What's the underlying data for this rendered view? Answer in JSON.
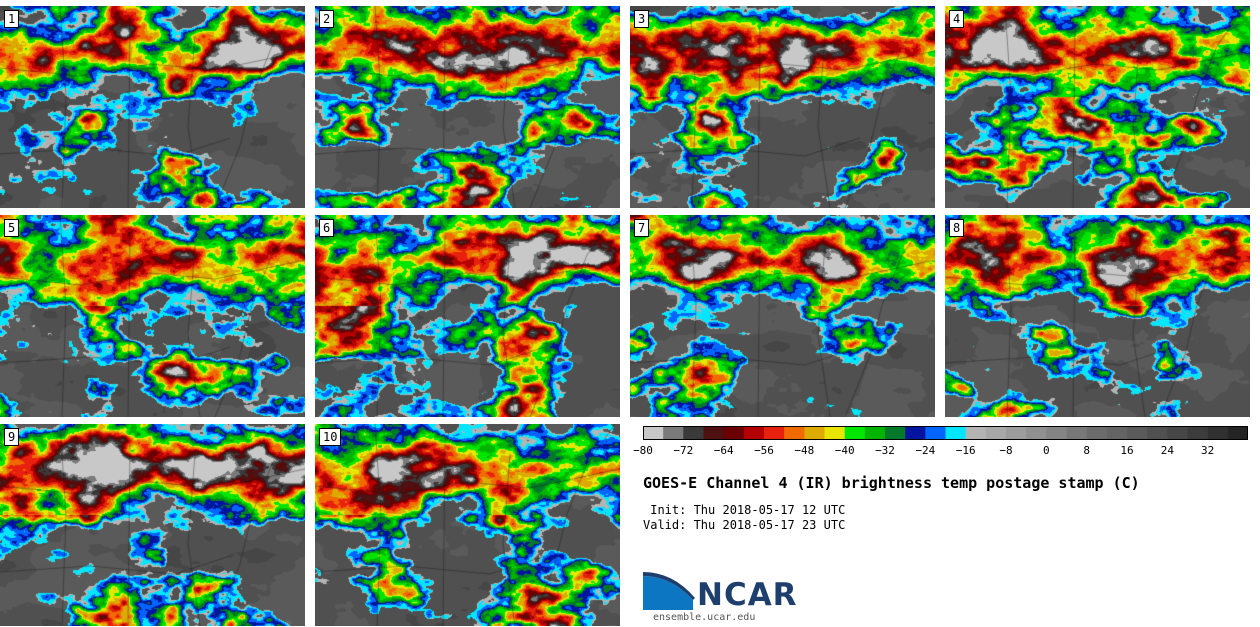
{
  "chart_data": {
    "type": "heatmap",
    "title": "GOES-E Channel 4 (IR) brightness temp postage stamp (C)",
    "init": " Init: Thu 2018-05-17 12 UTC",
    "valid": "Valid: Thu 2018-05-17 23 UTC",
    "panels": [
      "1",
      "2",
      "3",
      "4",
      "5",
      "6",
      "7",
      "8",
      "9",
      "10"
    ],
    "colorbar": {
      "min": -80,
      "max": 40,
      "step": 4,
      "tick_labels": [
        "−80",
        "−72",
        "−64",
        "−56",
        "−48",
        "−40",
        "−32",
        "−24",
        "−16",
        "−8",
        "0",
        "8",
        "16",
        "24",
        "32"
      ],
      "tick_values": [
        -80,
        -72,
        -64,
        -56,
        -48,
        -40,
        -32,
        -24,
        -16,
        -8,
        0,
        8,
        16,
        24,
        32
      ],
      "colors": [
        "#c8c8c8",
        "#7a7a7a",
        "#3a3a3a",
        "#4e1010",
        "#6b0000",
        "#b50000",
        "#e8200e",
        "#f06a00",
        "#dcaa00",
        "#e8e600",
        "#00e600",
        "#00b400",
        "#007a28",
        "#0014a0",
        "#0064ff",
        "#00e6ff",
        "#b4b4b4",
        "#a8a8a8",
        "#9c9c9c",
        "#909090",
        "#848484",
        "#787878",
        "#6c6c6c",
        "#646464",
        "#5a5a5a",
        "#505050",
        "#464646",
        "#3c3c3c",
        "#303030",
        "#242424"
      ]
    }
  },
  "branding": {
    "logo_text": "NCAR",
    "url": "ensemble.ucar.edu"
  }
}
